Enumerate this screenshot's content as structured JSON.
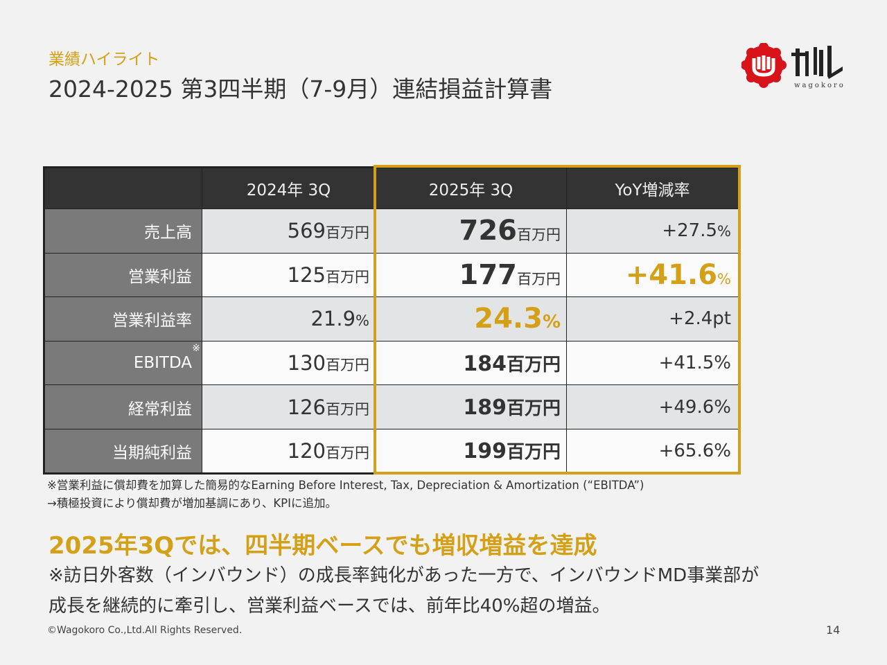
{
  "header": {
    "kicker": "業績ハイライト",
    "title": "2024-2025 第3四半期（7-9月）連結損益計算書",
    "logo_text": "wagokoro",
    "brand_color": "#d4a017"
  },
  "table": {
    "columns": [
      "",
      "2024年 3Q",
      "2025年 3Q",
      "YoY増減率"
    ],
    "rows": [
      {
        "label": "売上高",
        "prev": "569",
        "prev_unit": "百万円",
        "cur": "726",
        "cur_unit": "百万円",
        "yoy": "+27.5",
        "yoy_unit": "%"
      },
      {
        "label": "営業利益",
        "prev": "125",
        "prev_unit": "百万円",
        "cur": "177",
        "cur_unit": "百万円",
        "yoy": "+41.6",
        "yoy_unit": "%"
      },
      {
        "label": "営業利益率",
        "prev": "21.9",
        "prev_unit": "%",
        "cur": "24.3",
        "cur_unit": "%",
        "yoy": "+2.4",
        "yoy_unit": "pt"
      },
      {
        "label": "EBITDA",
        "mark": "※",
        "prev": "130",
        "prev_unit": "百万円",
        "cur": "184",
        "cur_unit": "百万円",
        "yoy": "+41.5",
        "yoy_unit": "%"
      },
      {
        "label": "経常利益",
        "prev": "126",
        "prev_unit": "百万円",
        "cur": "189",
        "cur_unit": "百万円",
        "yoy": "+49.6",
        "yoy_unit": "%"
      },
      {
        "label": "当期純利益",
        "prev": "120",
        "prev_unit": "百万円",
        "cur": "199",
        "cur_unit": "百万円",
        "yoy": "+65.6",
        "yoy_unit": "%"
      }
    ]
  },
  "notes": [
    "※営業利益に償却費を加算した簡易的なEarning Before Interest, Tax, Depreciation & Amortization (“EBITDA”)",
    "→積極投資により償却費が増加基調にあり、KPIに追加。"
  ],
  "headline": "2025年3Qでは、四半期ベースでも増収増益を達成",
  "body": [
    "※訪日外客数（インバウンド）の成長率鈍化があった一方で、インバウンドMD事業部が",
    "成長を継続的に牽引し、営業利益ベースでは、前年比40%超の増益。"
  ],
  "footer": {
    "copyright": "©Wagokoro Co.,Ltd.All Rights Reserved.",
    "page": "14"
  }
}
